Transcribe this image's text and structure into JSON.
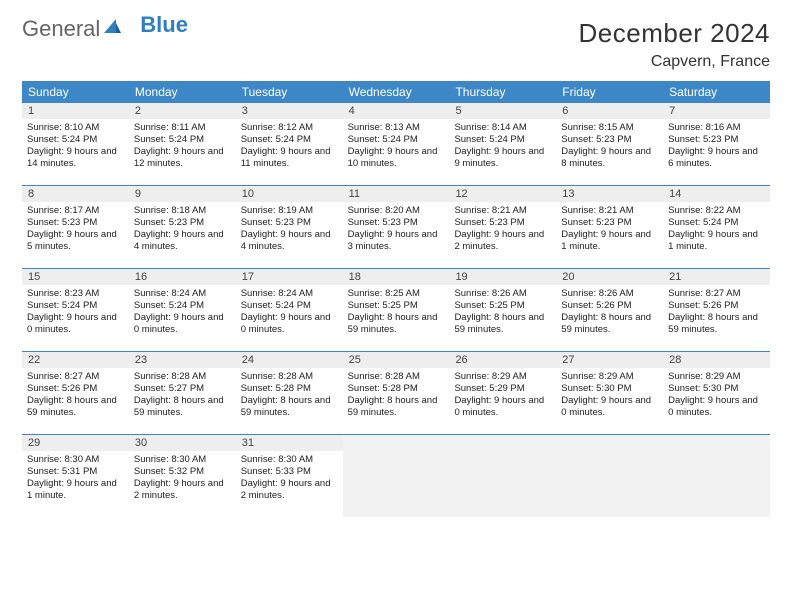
{
  "logo": {
    "part1": "General",
    "part2": "Blue"
  },
  "title": "December 2024",
  "location": "Capvern, France",
  "daysOfWeek": [
    "Sunday",
    "Monday",
    "Tuesday",
    "Wednesday",
    "Thursday",
    "Friday",
    "Saturday"
  ],
  "colors": {
    "headerBar": "#3d87c7",
    "dayNumBg": "#eeeeee",
    "weekDivider": "#3d87c7",
    "logoBlue": "#2f7fbf",
    "textGray": "#555"
  },
  "weeks": [
    [
      {
        "n": "1",
        "sunrise": "Sunrise: 8:10 AM",
        "sunset": "Sunset: 5:24 PM",
        "daylight": "Daylight: 9 hours and 14 minutes."
      },
      {
        "n": "2",
        "sunrise": "Sunrise: 8:11 AM",
        "sunset": "Sunset: 5:24 PM",
        "daylight": "Daylight: 9 hours and 12 minutes."
      },
      {
        "n": "3",
        "sunrise": "Sunrise: 8:12 AM",
        "sunset": "Sunset: 5:24 PM",
        "daylight": "Daylight: 9 hours and 11 minutes."
      },
      {
        "n": "4",
        "sunrise": "Sunrise: 8:13 AM",
        "sunset": "Sunset: 5:24 PM",
        "daylight": "Daylight: 9 hours and 10 minutes."
      },
      {
        "n": "5",
        "sunrise": "Sunrise: 8:14 AM",
        "sunset": "Sunset: 5:24 PM",
        "daylight": "Daylight: 9 hours and 9 minutes."
      },
      {
        "n": "6",
        "sunrise": "Sunrise: 8:15 AM",
        "sunset": "Sunset: 5:23 PM",
        "daylight": "Daylight: 9 hours and 8 minutes."
      },
      {
        "n": "7",
        "sunrise": "Sunrise: 8:16 AM",
        "sunset": "Sunset: 5:23 PM",
        "daylight": "Daylight: 9 hours and 6 minutes."
      }
    ],
    [
      {
        "n": "8",
        "sunrise": "Sunrise: 8:17 AM",
        "sunset": "Sunset: 5:23 PM",
        "daylight": "Daylight: 9 hours and 5 minutes."
      },
      {
        "n": "9",
        "sunrise": "Sunrise: 8:18 AM",
        "sunset": "Sunset: 5:23 PM",
        "daylight": "Daylight: 9 hours and 4 minutes."
      },
      {
        "n": "10",
        "sunrise": "Sunrise: 8:19 AM",
        "sunset": "Sunset: 5:23 PM",
        "daylight": "Daylight: 9 hours and 4 minutes."
      },
      {
        "n": "11",
        "sunrise": "Sunrise: 8:20 AM",
        "sunset": "Sunset: 5:23 PM",
        "daylight": "Daylight: 9 hours and 3 minutes."
      },
      {
        "n": "12",
        "sunrise": "Sunrise: 8:21 AM",
        "sunset": "Sunset: 5:23 PM",
        "daylight": "Daylight: 9 hours and 2 minutes."
      },
      {
        "n": "13",
        "sunrise": "Sunrise: 8:21 AM",
        "sunset": "Sunset: 5:23 PM",
        "daylight": "Daylight: 9 hours and 1 minute."
      },
      {
        "n": "14",
        "sunrise": "Sunrise: 8:22 AM",
        "sunset": "Sunset: 5:24 PM",
        "daylight": "Daylight: 9 hours and 1 minute."
      }
    ],
    [
      {
        "n": "15",
        "sunrise": "Sunrise: 8:23 AM",
        "sunset": "Sunset: 5:24 PM",
        "daylight": "Daylight: 9 hours and 0 minutes."
      },
      {
        "n": "16",
        "sunrise": "Sunrise: 8:24 AM",
        "sunset": "Sunset: 5:24 PM",
        "daylight": "Daylight: 9 hours and 0 minutes."
      },
      {
        "n": "17",
        "sunrise": "Sunrise: 8:24 AM",
        "sunset": "Sunset: 5:24 PM",
        "daylight": "Daylight: 9 hours and 0 minutes."
      },
      {
        "n": "18",
        "sunrise": "Sunrise: 8:25 AM",
        "sunset": "Sunset: 5:25 PM",
        "daylight": "Daylight: 8 hours and 59 minutes."
      },
      {
        "n": "19",
        "sunrise": "Sunrise: 8:26 AM",
        "sunset": "Sunset: 5:25 PM",
        "daylight": "Daylight: 8 hours and 59 minutes."
      },
      {
        "n": "20",
        "sunrise": "Sunrise: 8:26 AM",
        "sunset": "Sunset: 5:26 PM",
        "daylight": "Daylight: 8 hours and 59 minutes."
      },
      {
        "n": "21",
        "sunrise": "Sunrise: 8:27 AM",
        "sunset": "Sunset: 5:26 PM",
        "daylight": "Daylight: 8 hours and 59 minutes."
      }
    ],
    [
      {
        "n": "22",
        "sunrise": "Sunrise: 8:27 AM",
        "sunset": "Sunset: 5:26 PM",
        "daylight": "Daylight: 8 hours and 59 minutes."
      },
      {
        "n": "23",
        "sunrise": "Sunrise: 8:28 AM",
        "sunset": "Sunset: 5:27 PM",
        "daylight": "Daylight: 8 hours and 59 minutes."
      },
      {
        "n": "24",
        "sunrise": "Sunrise: 8:28 AM",
        "sunset": "Sunset: 5:28 PM",
        "daylight": "Daylight: 8 hours and 59 minutes."
      },
      {
        "n": "25",
        "sunrise": "Sunrise: 8:28 AM",
        "sunset": "Sunset: 5:28 PM",
        "daylight": "Daylight: 8 hours and 59 minutes."
      },
      {
        "n": "26",
        "sunrise": "Sunrise: 8:29 AM",
        "sunset": "Sunset: 5:29 PM",
        "daylight": "Daylight: 9 hours and 0 minutes."
      },
      {
        "n": "27",
        "sunrise": "Sunrise: 8:29 AM",
        "sunset": "Sunset: 5:30 PM",
        "daylight": "Daylight: 9 hours and 0 minutes."
      },
      {
        "n": "28",
        "sunrise": "Sunrise: 8:29 AM",
        "sunset": "Sunset: 5:30 PM",
        "daylight": "Daylight: 9 hours and 0 minutes."
      }
    ],
    [
      {
        "n": "29",
        "sunrise": "Sunrise: 8:30 AM",
        "sunset": "Sunset: 5:31 PM",
        "daylight": "Daylight: 9 hours and 1 minute."
      },
      {
        "n": "30",
        "sunrise": "Sunrise: 8:30 AM",
        "sunset": "Sunset: 5:32 PM",
        "daylight": "Daylight: 9 hours and 2 minutes."
      },
      {
        "n": "31",
        "sunrise": "Sunrise: 8:30 AM",
        "sunset": "Sunset: 5:33 PM",
        "daylight": "Daylight: 9 hours and 2 minutes."
      },
      null,
      null,
      null,
      null
    ]
  ]
}
